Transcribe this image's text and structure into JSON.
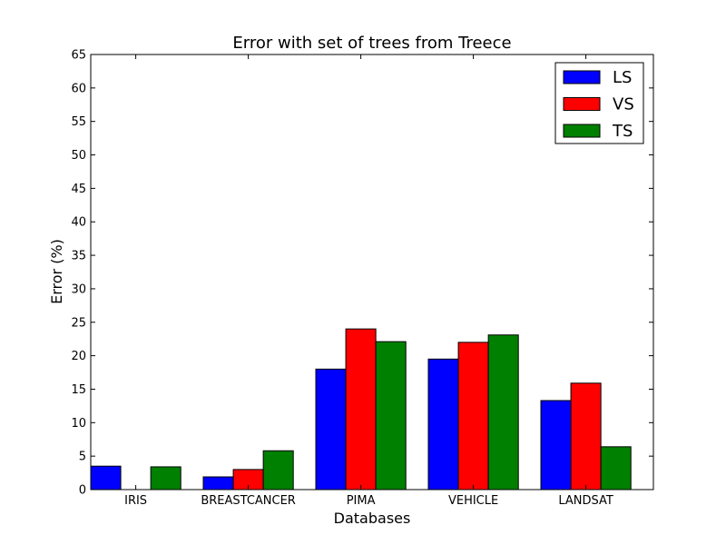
{
  "chart_data": {
    "type": "bar",
    "title": "Error with set of trees from Treece",
    "xlabel": "Databases",
    "ylabel": "Error (%)",
    "categories": [
      "IRIS",
      "BREASTCANCER",
      "PIMA",
      "VEHICLE",
      "LANDSAT"
    ],
    "series": [
      {
        "name": "LS",
        "color": "#0000ff",
        "values": [
          3.5,
          1.9,
          18.0,
          19.5,
          13.3
        ]
      },
      {
        "name": "VS",
        "color": "#ff0000",
        "values": [
          0.0,
          3.0,
          24.0,
          22.0,
          15.9
        ]
      },
      {
        "name": "TS",
        "color": "#008000",
        "values": [
          3.4,
          5.8,
          22.1,
          23.1,
          6.4
        ]
      }
    ],
    "ylim": [
      0,
      65
    ],
    "yticks": [
      0,
      5,
      10,
      15,
      20,
      25,
      30,
      35,
      40,
      45,
      50,
      55,
      60,
      65
    ],
    "grid": false,
    "legend_position": "top-right"
  }
}
